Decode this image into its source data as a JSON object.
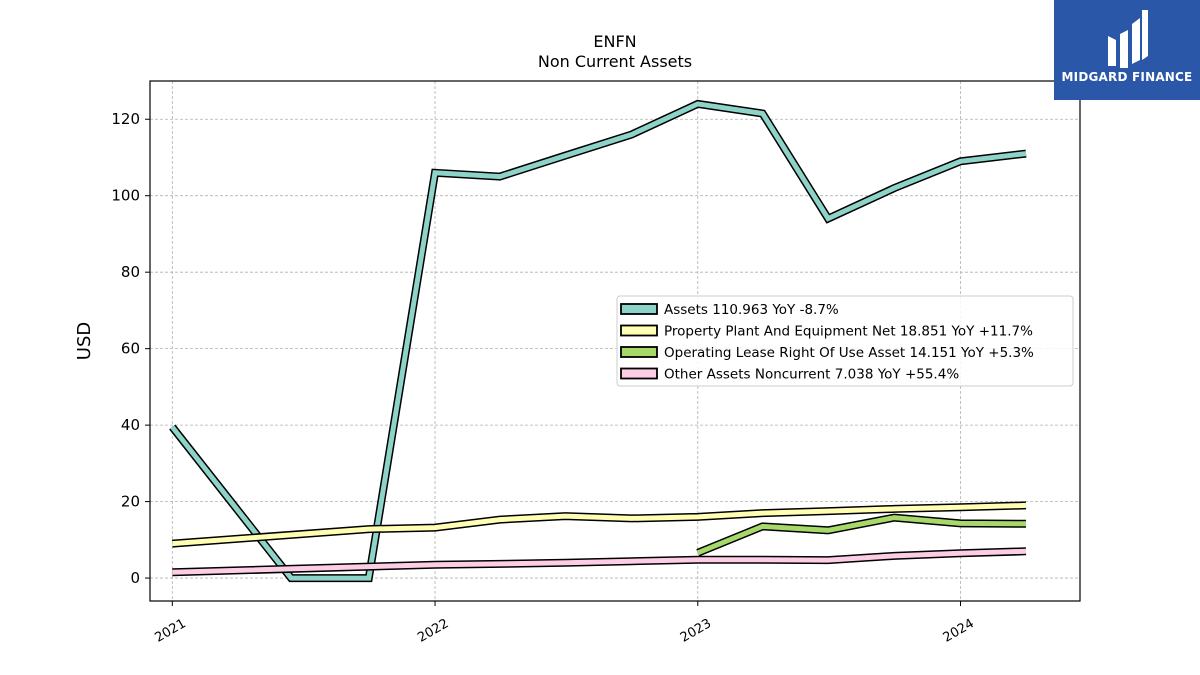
{
  "header": {
    "ticker": "ENFN",
    "subtitle": "Non Current  Assets"
  },
  "logo": {
    "brand_text": "MIDGARD FINANCE",
    "bg_color": "#2b57a8",
    "icon": "midgard-logo-icon"
  },
  "chart_data": {
    "type": "line",
    "title": "ENFN",
    "subtitle": "Non Current  Assets",
    "ylabel": "USD",
    "xlabel": "",
    "xlim": [
      "2020-12-01",
      "2024-06-15"
    ],
    "ylim": [
      -6,
      130
    ],
    "yticks": [
      0,
      20,
      40,
      60,
      80,
      100,
      120
    ],
    "xticks": [
      {
        "date": "2021-01-01",
        "label": "2021"
      },
      {
        "date": "2022-01-01",
        "label": "2022"
      },
      {
        "date": "2023-01-01",
        "label": "2023"
      },
      {
        "date": "2024-01-01",
        "label": "2024"
      }
    ],
    "grid": true,
    "legend_position": "center-right",
    "series": [
      {
        "name": "Assets  110.963 YoY -8.7%",
        "color": "#8dd3c7",
        "x": [
          "2021-01-01",
          "2021-06-15",
          "2021-10-01",
          "2022-01-01",
          "2022-04-01",
          "2022-07-01",
          "2022-10-01",
          "2023-01-01",
          "2023-04-01",
          "2023-07-01",
          "2023-10-01",
          "2024-01-01",
          "2024-04-01"
        ],
        "y": [
          39.5,
          0,
          0,
          106,
          105,
          110.5,
          116,
          124,
          121.5,
          94,
          102,
          109,
          111
        ]
      },
      {
        "name": "Property Plant And Equipment Net  18.851 YoY +11.7%",
        "color": "#ffffb3",
        "x": [
          "2021-01-01",
          "2021-10-01",
          "2022-01-01",
          "2022-04-01",
          "2022-07-01",
          "2022-10-01",
          "2023-01-01",
          "2023-04-01",
          "2023-07-01",
          "2023-10-01",
          "2024-01-01",
          "2024-04-01"
        ],
        "y": [
          9,
          12.8,
          13.2,
          15.3,
          16.2,
          15.6,
          16,
          17,
          17.5,
          18.1,
          18.5,
          19
        ]
      },
      {
        "name": "Operating Lease Right Of Use Asset  14.151 YoY +5.3%",
        "color": "#a6d96a",
        "x": [
          "2023-01-01",
          "2023-04-01",
          "2023-07-01",
          "2023-10-01",
          "2024-01-01",
          "2024-04-01"
        ],
        "y": [
          6.6,
          13.5,
          12.5,
          15.8,
          14.3,
          14.2
        ]
      },
      {
        "name": "Other Assets Noncurrent  7.038 YoY +55.4%",
        "color": "#fccde5",
        "x": [
          "2021-01-01",
          "2022-01-01",
          "2022-04-01",
          "2022-07-01",
          "2022-10-01",
          "2023-01-01",
          "2023-04-01",
          "2023-07-01",
          "2023-10-01",
          "2024-01-01",
          "2024-04-01"
        ],
        "y": [
          1.5,
          3.5,
          3.7,
          4,
          4.4,
          4.8,
          4.8,
          4.7,
          5.8,
          6.5,
          7
        ]
      }
    ]
  }
}
